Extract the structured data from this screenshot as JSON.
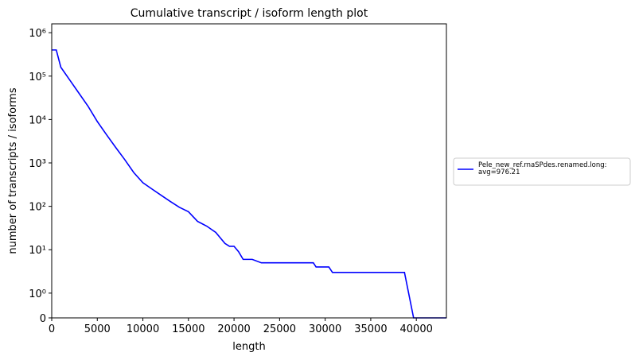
{
  "chart_data": {
    "type": "line",
    "title": "Cumulative transcript / isoform length plot",
    "x_label": "length",
    "y_label": "number of transcripts / isoforms",
    "yscale": "symlog",
    "xlim": [
      0,
      43300
    ],
    "xticks": [
      0,
      5000,
      10000,
      15000,
      20000,
      25000,
      30000,
      35000,
      40000
    ],
    "ylim": [
      0,
      1600000
    ],
    "yticks": [
      0,
      {
        "value": 1,
        "label": "10⁰"
      },
      {
        "value": 10,
        "label": "10¹"
      },
      {
        "value": 100,
        "label": "10²"
      },
      {
        "value": 1000,
        "label": "10³"
      },
      {
        "value": 10000,
        "label": "10⁴"
      },
      {
        "value": 100000,
        "label": "10⁵"
      },
      {
        "value": 1000000,
        "label": "10⁶"
      }
    ],
    "legend": "right",
    "x": [
      0,
      500,
      1000,
      2000,
      3000,
      4000,
      5000,
      6000,
      7000,
      8000,
      9000,
      10000,
      11000,
      12000,
      13000,
      14000,
      15000,
      16000,
      17000,
      18000,
      19000,
      19500,
      20000,
      20500,
      21000,
      22000,
      23000,
      28700,
      29000,
      30400,
      30800,
      38700,
      39700,
      43300
    ],
    "series": [
      {
        "name": "Pele_new_ref.rnaSPdes.renamed.long:\navg=976.21",
        "color": "#0000ff",
        "values": [
          400000,
          400000,
          160000,
          80000,
          40000,
          20000,
          9000,
          4500,
          2300,
          1200,
          600,
          350,
          250,
          180,
          130,
          95,
          75,
          45,
          35,
          25,
          14,
          12,
          12,
          9,
          6,
          6,
          5,
          5,
          4,
          4,
          3,
          3,
          0,
          0
        ]
      }
    ]
  }
}
